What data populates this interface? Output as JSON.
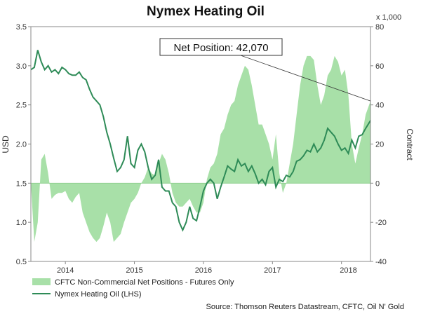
{
  "chart_data": {
    "type": "line",
    "title": "Nymex Heating Oil",
    "ylabel_left": "USD",
    "ylabel_right": "Contract",
    "right_unit": "x 1,000",
    "ylim_left": [
      0.5,
      3.5
    ],
    "ylim_right": [
      -40,
      80
    ],
    "yticks_left": [
      "3.5",
      "3.0",
      "2.5",
      "2.0",
      "1.5",
      "1.0",
      "0.5"
    ],
    "yticks_right": [
      "80",
      "60",
      "40",
      "20",
      "0",
      "-20",
      "-40"
    ],
    "xlim": [
      2013.5,
      2018.42
    ],
    "xticks": [
      {
        "label": "2014",
        "x": 2014.0
      },
      {
        "label": "2015",
        "x": 2015.0
      },
      {
        "label": "2016",
        "x": 2016.0
      },
      {
        "label": "2017",
        "x": 2017.0
      },
      {
        "label": "2018",
        "x": 2018.0
      }
    ],
    "grid": false,
    "annotation": {
      "text": "Net Position: 42,070",
      "target": {
        "x": 2018.42,
        "y_right": 42
      }
    },
    "legend": {
      "placement": "bottom-left",
      "entries": [
        "CFTC Non-Commercial Net Positions - Futures Only",
        "Nymex Heating Oil (LHS)"
      ]
    },
    "source": "Source: Thomson Reuters Datastream, CFTC, Oil N' Gold",
    "series": [
      {
        "name": "CFTC Non-Commercial Net Positions - Futures Only",
        "axis": "right",
        "style": "area",
        "color": "#a8e0a8",
        "x": [
          2013.5,
          2013.55,
          2013.6,
          2013.65,
          2013.7,
          2013.75,
          2013.8,
          2013.85,
          2013.9,
          2013.95,
          2014.0,
          2014.05,
          2014.1,
          2014.15,
          2014.2,
          2014.25,
          2014.3,
          2014.35,
          2014.4,
          2014.45,
          2014.5,
          2014.55,
          2014.6,
          2014.65,
          2014.7,
          2014.75,
          2014.8,
          2014.85,
          2014.9,
          2014.95,
          2015.0,
          2015.05,
          2015.1,
          2015.15,
          2015.2,
          2015.25,
          2015.3,
          2015.35,
          2015.4,
          2015.45,
          2015.5,
          2015.55,
          2015.6,
          2015.65,
          2015.7,
          2015.75,
          2015.8,
          2015.85,
          2015.9,
          2015.95,
          2016.0,
          2016.05,
          2016.1,
          2016.15,
          2016.2,
          2016.25,
          2016.3,
          2016.35,
          2016.4,
          2016.45,
          2016.5,
          2016.55,
          2016.6,
          2016.65,
          2016.7,
          2016.75,
          2016.8,
          2016.85,
          2016.9,
          2016.95,
          2017.0,
          2017.05,
          2017.1,
          2017.15,
          2017.2,
          2017.25,
          2017.3,
          2017.35,
          2017.4,
          2017.45,
          2017.5,
          2017.55,
          2017.6,
          2017.65,
          2017.7,
          2017.75,
          2017.8,
          2017.85,
          2017.9,
          2017.95,
          2018.0,
          2018.05,
          2018.1,
          2018.15,
          2018.2,
          2018.25,
          2018.3,
          2018.35,
          2018.42
        ],
        "values": [
          0,
          -30,
          -20,
          12,
          15,
          5,
          -8,
          -6,
          -5,
          -5,
          -4,
          -8,
          -10,
          -7,
          -5,
          -15,
          -20,
          -25,
          -28,
          -30,
          -28,
          -22,
          -15,
          -20,
          -30,
          -28,
          -26,
          -20,
          -15,
          -10,
          -8,
          -5,
          0,
          3,
          8,
          5,
          4,
          10,
          15,
          12,
          5,
          -5,
          -10,
          -12,
          -12,
          -10,
          -8,
          -12,
          -15,
          -15,
          -10,
          2,
          8,
          10,
          15,
          25,
          28,
          35,
          40,
          42,
          50,
          55,
          60,
          58,
          50,
          40,
          30,
          30,
          25,
          20,
          12,
          25,
          5,
          -5,
          0,
          10,
          20,
          35,
          50,
          60,
          65,
          65,
          63,
          50,
          40,
          45,
          55,
          58,
          65,
          62,
          55,
          58,
          45,
          20,
          10,
          18,
          25,
          35,
          42
        ]
      },
      {
        "name": "Nymex Heating Oil (LHS)",
        "axis": "left",
        "style": "line",
        "color": "#2e8b57",
        "x": [
          2013.5,
          2013.55,
          2013.6,
          2013.65,
          2013.7,
          2013.75,
          2013.8,
          2013.85,
          2013.9,
          2013.95,
          2014.0,
          2014.05,
          2014.1,
          2014.15,
          2014.2,
          2014.25,
          2014.3,
          2014.35,
          2014.4,
          2014.45,
          2014.5,
          2014.55,
          2014.6,
          2014.65,
          2014.7,
          2014.75,
          2014.8,
          2014.85,
          2014.9,
          2014.95,
          2015.0,
          2015.05,
          2015.1,
          2015.15,
          2015.2,
          2015.25,
          2015.3,
          2015.35,
          2015.4,
          2015.45,
          2015.5,
          2015.55,
          2015.6,
          2015.65,
          2015.7,
          2015.75,
          2015.8,
          2015.85,
          2015.9,
          2015.95,
          2016.0,
          2016.05,
          2016.1,
          2016.15,
          2016.2,
          2016.25,
          2016.3,
          2016.35,
          2016.4,
          2016.45,
          2016.5,
          2016.55,
          2016.6,
          2016.65,
          2016.7,
          2016.75,
          2016.8,
          2016.85,
          2016.9,
          2016.95,
          2017.0,
          2017.05,
          2017.1,
          2017.15,
          2017.2,
          2017.25,
          2017.3,
          2017.35,
          2017.4,
          2017.45,
          2017.5,
          2017.55,
          2017.6,
          2017.65,
          2017.7,
          2017.75,
          2017.8,
          2017.85,
          2017.9,
          2017.95,
          2018.0,
          2018.05,
          2018.1,
          2018.15,
          2018.2,
          2018.25,
          2018.3,
          2018.35,
          2018.42
        ],
        "values": [
          2.95,
          2.98,
          3.2,
          3.05,
          2.95,
          3.0,
          2.92,
          2.95,
          2.9,
          2.98,
          2.95,
          2.9,
          2.88,
          2.88,
          2.92,
          2.85,
          2.82,
          2.7,
          2.6,
          2.55,
          2.5,
          2.35,
          2.15,
          2.0,
          1.82,
          1.65,
          1.7,
          1.8,
          2.1,
          1.75,
          1.7,
          1.92,
          2.0,
          1.9,
          1.7,
          1.55,
          1.6,
          1.8,
          1.45,
          1.4,
          1.4,
          1.25,
          1.2,
          1.0,
          0.9,
          1.0,
          1.2,
          1.05,
          1.02,
          1.2,
          1.4,
          1.5,
          1.55,
          1.5,
          1.3,
          1.45,
          1.58,
          1.72,
          1.68,
          1.65,
          1.8,
          1.72,
          1.75,
          1.65,
          1.72,
          1.62,
          1.5,
          1.55,
          1.48,
          1.65,
          1.7,
          1.45,
          1.55,
          1.52,
          1.6,
          1.58,
          1.65,
          1.78,
          1.8,
          1.85,
          1.92,
          1.9,
          2.0,
          1.9,
          1.95,
          2.05,
          2.2,
          2.15,
          2.1,
          2.0,
          1.92,
          1.95,
          1.88,
          2.05,
          1.95,
          2.1,
          2.12,
          2.2,
          2.3
        ]
      }
    ]
  }
}
